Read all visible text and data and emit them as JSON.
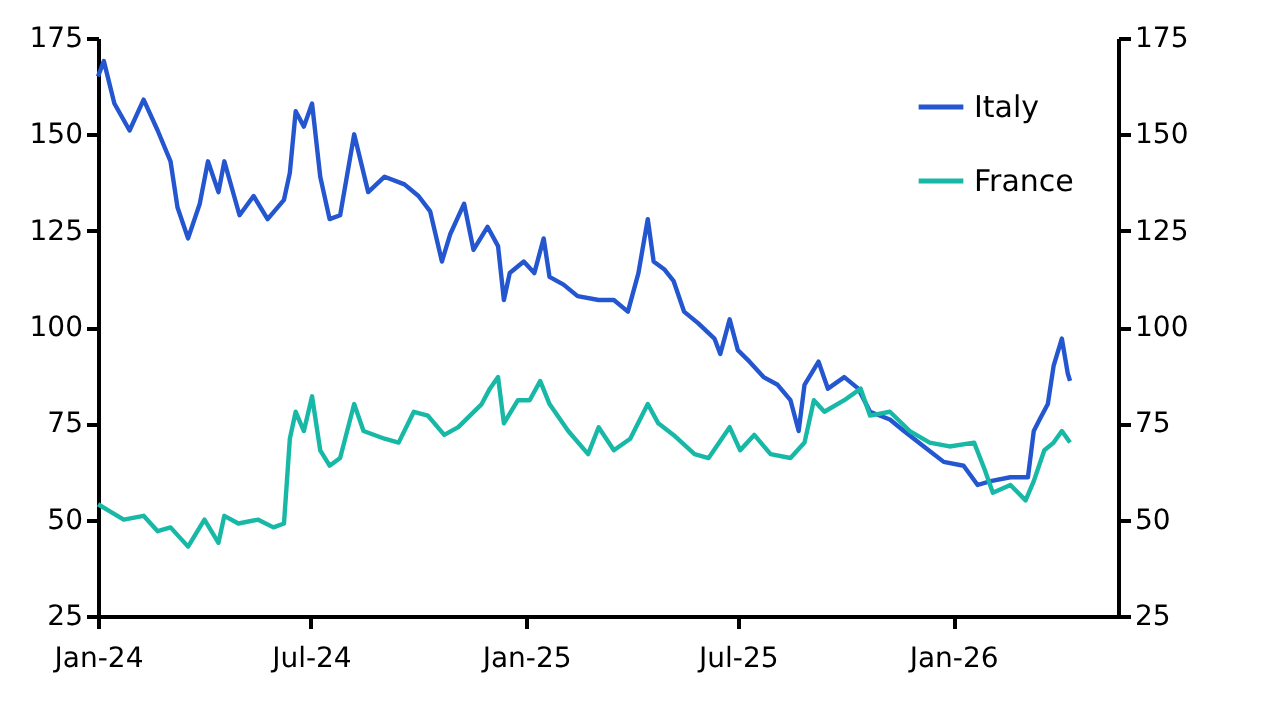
{
  "chart_data": {
    "type": "line",
    "legend": "top right",
    "xlim": [
      "2024-01-01",
      "2026-05-22"
    ],
    "xticks": [
      {
        "value": "2024-01-01",
        "label": "Jan-24"
      },
      {
        "value": "2024-07-01",
        "label": "Jul-24"
      },
      {
        "value": "2025-01-01",
        "label": "Jan-25"
      },
      {
        "value": "2025-07-01",
        "label": "Jul-25"
      },
      {
        "value": "2026-01-01",
        "label": "Jan-26"
      }
    ],
    "ylim": [
      25,
      175
    ],
    "yticks": [
      25,
      50,
      75,
      100,
      125,
      150,
      175
    ],
    "y2lim": [
      25,
      175
    ],
    "y2ticks": [
      25,
      50,
      75,
      100,
      125,
      150,
      175
    ],
    "series": [
      {
        "name": "Italy",
        "color": "#2456d0",
        "x": [
          "2024-01-01",
          "2024-01-06",
          "2024-01-15",
          "2024-01-28",
          "2024-02-09",
          "2024-02-21",
          "2024-03-03",
          "2024-03-09",
          "2024-03-18",
          "2024-03-28",
          "2024-04-04",
          "2024-04-13",
          "2024-04-18",
          "2024-05-01",
          "2024-05-13",
          "2024-05-25",
          "2024-06-08",
          "2024-06-13",
          "2024-06-18",
          "2024-06-25",
          "2024-07-02",
          "2024-07-09",
          "2024-07-17",
          "2024-07-26",
          "2024-08-07",
          "2024-08-19",
          "2024-09-02",
          "2024-09-19",
          "2024-10-01",
          "2024-10-11",
          "2024-10-21",
          "2024-10-28",
          "2024-11-09",
          "2024-11-17",
          "2024-11-29",
          "2024-12-08",
          "2024-12-13",
          "2024-12-18",
          "2024-12-30",
          "2025-01-08",
          "2025-01-16",
          "2025-01-21",
          "2025-02-02",
          "2025-02-14",
          "2025-03-04",
          "2025-03-17",
          "2025-03-29",
          "2025-04-07",
          "2025-04-15",
          "2025-04-20",
          "2025-04-29",
          "2025-05-07",
          "2025-05-16",
          "2025-05-28",
          "2025-06-11",
          "2025-06-16",
          "2025-06-24",
          "2025-07-01",
          "2025-07-11",
          "2025-07-23",
          "2025-08-04",
          "2025-08-15",
          "2025-08-22",
          "2025-08-27",
          "2025-09-08",
          "2025-09-16",
          "2025-09-30",
          "2025-10-12",
          "2025-10-22",
          "2025-11-08",
          "2025-11-20",
          "2025-12-07",
          "2025-12-24",
          "2026-01-10",
          "2026-01-22",
          "2026-02-02",
          "2026-02-19",
          "2026-03-06",
          "2026-03-11",
          "2026-03-16",
          "2026-03-23",
          "2026-03-28",
          "2026-04-04",
          "2026-04-09",
          "2026-04-11"
        ],
        "values": [
          165,
          169,
          158,
          151,
          159,
          151,
          143,
          131,
          123,
          132,
          143,
          135,
          143,
          129,
          134,
          128,
          133,
          140,
          156,
          152,
          158,
          139,
          128,
          129,
          150,
          135,
          139,
          137,
          134,
          130,
          117,
          124,
          132,
          120,
          126,
          121,
          107,
          114,
          117,
          114,
          123,
          113,
          111,
          108,
          107,
          107,
          104,
          114,
          128,
          117,
          115,
          112,
          104,
          101,
          97,
          93,
          102,
          94,
          91,
          87,
          85,
          81,
          73,
          85,
          91,
          84,
          87,
          84,
          78,
          76,
          73,
          69,
          65,
          64,
          59,
          60,
          61,
          61,
          73,
          76,
          80,
          90,
          97,
          88,
          86
        ]
      },
      {
        "name": "France",
        "color": "#17b8a6",
        "x": [
          "2024-01-01",
          "2024-01-23",
          "2024-02-09",
          "2024-02-21",
          "2024-03-03",
          "2024-03-18",
          "2024-04-01",
          "2024-04-13",
          "2024-04-18",
          "2024-04-30",
          "2024-05-17",
          "2024-05-30",
          "2024-06-08",
          "2024-06-13",
          "2024-06-18",
          "2024-06-25",
          "2024-07-02",
          "2024-07-09",
          "2024-07-17",
          "2024-07-26",
          "2024-08-07",
          "2024-08-15",
          "2024-09-02",
          "2024-09-14",
          "2024-09-27",
          "2024-10-09",
          "2024-10-23",
          "2024-11-04",
          "2024-11-14",
          "2024-11-24",
          "2024-12-01",
          "2024-12-08",
          "2024-12-13",
          "2024-12-25",
          "2025-01-04",
          "2025-01-13",
          "2025-01-21",
          "2025-02-06",
          "2025-02-23",
          "2025-03-04",
          "2025-03-17",
          "2025-03-31",
          "2025-04-15",
          "2025-04-24",
          "2025-05-07",
          "2025-05-25",
          "2025-06-06",
          "2025-06-24",
          "2025-07-03",
          "2025-07-15",
          "2025-07-29",
          "2025-08-15",
          "2025-08-27",
          "2025-09-04",
          "2025-09-13",
          "2025-09-30",
          "2025-10-14",
          "2025-10-22",
          "2025-11-08",
          "2025-11-25",
          "2025-12-12",
          "2025-12-29",
          "2026-01-19",
          "2026-01-28",
          "2026-02-04",
          "2026-02-19",
          "2026-03-04",
          "2026-03-11",
          "2026-03-20",
          "2026-03-28",
          "2026-04-04",
          "2026-04-11"
        ],
        "values": [
          54,
          50,
          51,
          47,
          48,
          43,
          50,
          44,
          51,
          49,
          50,
          48,
          49,
          71,
          78,
          73,
          82,
          68,
          64,
          66,
          80,
          73,
          71,
          70,
          78,
          77,
          72,
          74,
          77,
          80,
          84,
          87,
          75,
          81,
          81,
          86,
          80,
          73,
          67,
          74,
          68,
          71,
          80,
          75,
          72,
          67,
          66,
          74,
          68,
          72,
          67,
          66,
          70,
          81,
          78,
          81,
          84,
          77,
          78,
          73,
          70,
          69,
          70,
          63,
          57,
          59,
          55,
          60,
          68,
          70,
          73,
          70
        ]
      }
    ]
  }
}
